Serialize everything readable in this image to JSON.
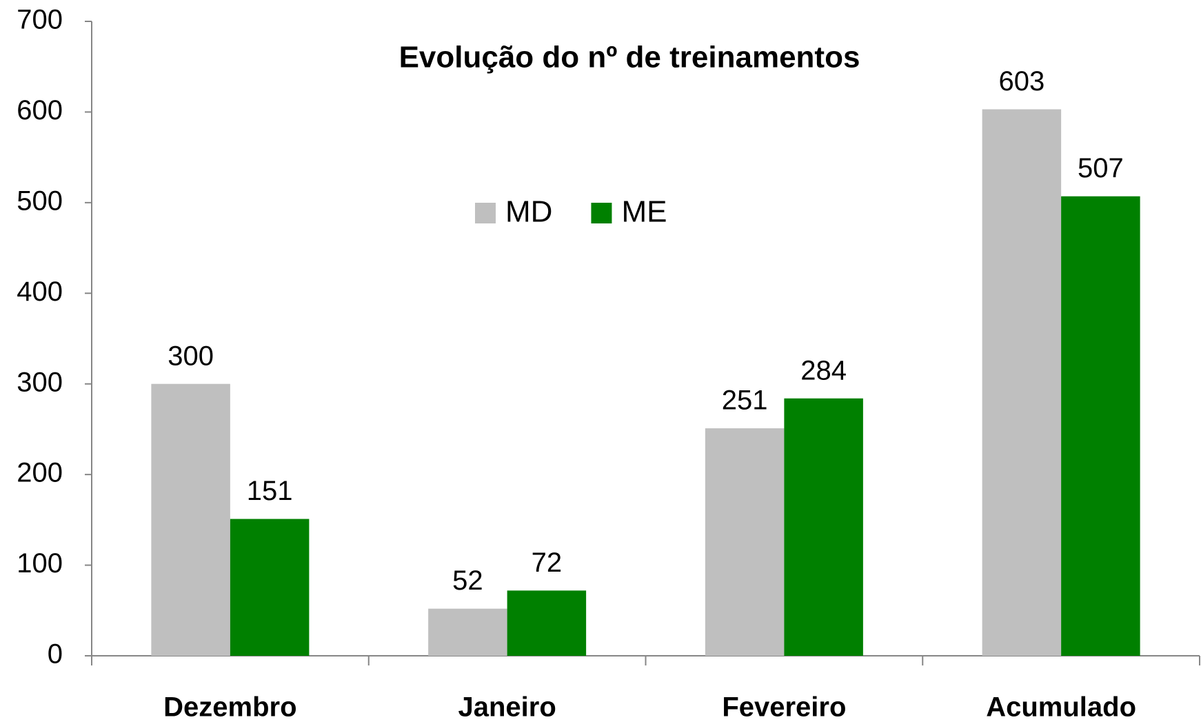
{
  "chart_data": {
    "type": "bar",
    "title": "Evolução do nº de treinamentos",
    "categories": [
      "Dezembro",
      "Janeiro",
      "Fevereiro",
      "Acumulado"
    ],
    "series": [
      {
        "name": "MD",
        "color": "#bfbfbf",
        "values": [
          300,
          52,
          251,
          603
        ]
      },
      {
        "name": "ME",
        "color": "#008000",
        "values": [
          151,
          72,
          284,
          507
        ]
      }
    ],
    "ylim": [
      0,
      700
    ],
    "yticks": [
      0,
      100,
      200,
      300,
      400,
      500,
      600,
      700
    ],
    "grid": false,
    "legend": "top"
  }
}
